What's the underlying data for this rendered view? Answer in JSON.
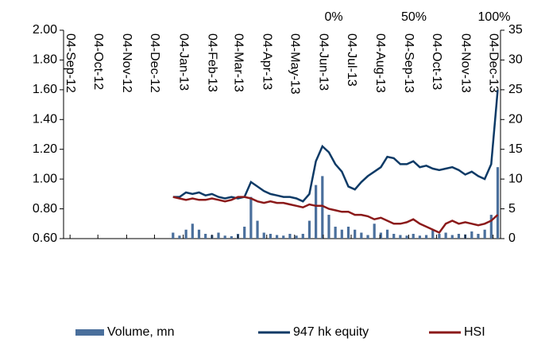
{
  "chart_data": {
    "type": "combo",
    "x": [
      "2012-12-24",
      "2012-12-31",
      "2013-01-07",
      "2013-01-14",
      "2013-01-21",
      "2013-01-28",
      "2013-02-04",
      "2013-02-11",
      "2013-02-18",
      "2013-02-25",
      "2013-03-04",
      "2013-03-11",
      "2013-03-18",
      "2013-03-25",
      "2013-04-01",
      "2013-04-08",
      "2013-04-15",
      "2013-04-22",
      "2013-04-29",
      "2013-05-06",
      "2013-05-13",
      "2013-05-20",
      "2013-05-27",
      "2013-06-03",
      "2013-06-10",
      "2013-06-17",
      "2013-06-24",
      "2013-07-01",
      "2013-07-08",
      "2013-07-15",
      "2013-07-22",
      "2013-07-29",
      "2013-08-05",
      "2013-08-12",
      "2013-08-19",
      "2013-08-26",
      "2013-09-02",
      "2013-09-09",
      "2013-09-16",
      "2013-09-23",
      "2013-09-30",
      "2013-10-07",
      "2013-10-14",
      "2013-10-21",
      "2013-10-28",
      "2013-11-04",
      "2013-11-11",
      "2013-11-18",
      "2013-11-25",
      "2013-12-02",
      "2013-12-09"
    ],
    "series": [
      {
        "name": "Volume, mn",
        "type": "bar",
        "axis": "y2",
        "color": "#4a6f9c",
        "values": [
          1.0,
          0.5,
          1.5,
          2.5,
          1.5,
          0.8,
          0.6,
          1.0,
          0.5,
          0.4,
          0.8,
          2.0,
          7.0,
          3.0,
          1.0,
          0.8,
          0.6,
          0.5,
          0.8,
          0.5,
          0.8,
          3.0,
          9.0,
          10.5,
          4.0,
          2.0,
          1.5,
          2.0,
          1.5,
          1.0,
          0.6,
          2.5,
          1.0,
          1.5,
          0.8,
          0.6,
          0.5,
          0.8,
          0.5,
          0.6,
          1.5,
          0.8,
          1.0,
          0.6,
          0.8,
          0.7,
          1.2,
          0.8,
          1.5,
          4.0,
          12.0
        ]
      },
      {
        "name": "947 hk equity",
        "type": "line",
        "color": "#0d3a66",
        "values": [
          0.88,
          0.88,
          0.91,
          0.9,
          0.91,
          0.89,
          0.9,
          0.88,
          0.87,
          0.88,
          0.87,
          0.88,
          0.98,
          0.95,
          0.92,
          0.9,
          0.89,
          0.88,
          0.88,
          0.87,
          0.85,
          0.9,
          1.12,
          1.22,
          1.18,
          1.1,
          1.05,
          0.95,
          0.93,
          0.98,
          1.02,
          1.05,
          1.08,
          1.15,
          1.14,
          1.1,
          1.1,
          1.12,
          1.08,
          1.09,
          1.07,
          1.06,
          1.07,
          1.08,
          1.06,
          1.03,
          1.05,
          1.02,
          1.0,
          1.1,
          1.6
        ]
      },
      {
        "name": "HSI",
        "type": "line",
        "color": "#8b1a1a",
        "values": [
          0.88,
          0.87,
          0.86,
          0.87,
          0.86,
          0.86,
          0.87,
          0.86,
          0.85,
          0.86,
          0.88,
          0.88,
          0.87,
          0.85,
          0.84,
          0.85,
          0.84,
          0.84,
          0.83,
          0.82,
          0.81,
          0.83,
          0.82,
          0.82,
          0.8,
          0.79,
          0.78,
          0.78,
          0.76,
          0.76,
          0.75,
          0.73,
          0.74,
          0.72,
          0.7,
          0.7,
          0.71,
          0.73,
          0.7,
          0.68,
          0.66,
          0.64,
          0.7,
          0.72,
          0.7,
          0.71,
          0.7,
          0.69,
          0.7,
          0.72,
          0.76
        ]
      }
    ],
    "xlim": [
      "2012-08-28",
      "2013-12-12"
    ],
    "xticks": [
      {
        "value": "2012-09-04",
        "label": "04-Sep-12"
      },
      {
        "value": "2012-10-04",
        "label": "04-Oct-12"
      },
      {
        "value": "2012-11-04",
        "label": "04-Nov-12"
      },
      {
        "value": "2012-12-04",
        "label": "04-Dec-12"
      },
      {
        "value": "2013-01-04",
        "label": "04-Jan-13"
      },
      {
        "value": "2013-02-04",
        "label": "04-Feb-13"
      },
      {
        "value": "2013-03-04",
        "label": "04-Mar-13"
      },
      {
        "value": "2013-04-04",
        "label": "04-Apr-13"
      },
      {
        "value": "2013-05-04",
        "label": "04-May-13"
      },
      {
        "value": "2013-06-04",
        "label": "04-Jun-13"
      },
      {
        "value": "2013-07-04",
        "label": "04-Jul-13"
      },
      {
        "value": "2013-08-04",
        "label": "04-Aug-13"
      },
      {
        "value": "2013-09-04",
        "label": "04-Sep-13"
      },
      {
        "value": "2013-10-04",
        "label": "04-Oct-13"
      },
      {
        "value": "2013-11-04",
        "label": "04-Nov-13"
      },
      {
        "value": "2013-12-04",
        "label": "04-Dec-13"
      }
    ],
    "ylim": [
      0.6,
      2.0
    ],
    "yticks": [
      {
        "value": 0.6,
        "label": "0.60"
      },
      {
        "value": 0.8,
        "label": "0.80"
      },
      {
        "value": 1.0,
        "label": "1.00"
      },
      {
        "value": 1.2,
        "label": "1.20"
      },
      {
        "value": 1.4,
        "label": "1.40"
      },
      {
        "value": 1.6,
        "label": "1.60"
      },
      {
        "value": 1.8,
        "label": "1.80"
      },
      {
        "value": 2.0,
        "label": "2.00"
      }
    ],
    "y2lim": [
      0,
      35
    ],
    "y2ticks": [
      0,
      5,
      10,
      15,
      20,
      25,
      30,
      35
    ],
    "x2lim": [
      0,
      100
    ],
    "x2ticks": [
      {
        "value": 0,
        "label": "0%"
      },
      {
        "value": 50,
        "label": "50%"
      },
      {
        "value": 100,
        "label": "100%"
      }
    ],
    "legend": "bottom"
  }
}
